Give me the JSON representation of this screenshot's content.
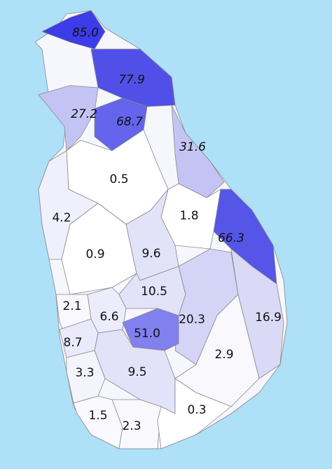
{
  "regions": [
    {
      "label": "85.0",
      "color": "#3c3ce8",
      "italic": true
    },
    {
      "label": "77.9",
      "color": "#5050e8",
      "italic": true
    },
    {
      "label": "27.2",
      "color": "#c4c4f4",
      "italic": true
    },
    {
      "label": "68.7",
      "color": "#6464ec",
      "italic": true
    },
    {
      "label": "31.6",
      "color": "#c4c4f4",
      "italic": true
    },
    {
      "label": "0.5",
      "color": "#ffffff",
      "italic": false
    },
    {
      "label": "4.2",
      "color": "#f0f0fc",
      "italic": false
    },
    {
      "label": "1.8",
      "color": "#ffffff",
      "italic": false
    },
    {
      "label": "66.3",
      "color": "#5555e8",
      "italic": true
    },
    {
      "label": "0.9",
      "color": "#ffffff",
      "italic": false
    },
    {
      "label": "9.6",
      "color": "#e2e2f8",
      "italic": false
    },
    {
      "label": "10.5",
      "color": "#e2e2f8",
      "italic": false
    },
    {
      "label": "2.1",
      "color": "#f8f8fd",
      "italic": false
    },
    {
      "label": "6.6",
      "color": "#ececfb",
      "italic": false
    },
    {
      "label": "20.3",
      "color": "#d4d4f6",
      "italic": false
    },
    {
      "label": "16.9",
      "color": "#dadaf7",
      "italic": false
    },
    {
      "label": "51.0",
      "color": "#8080ee",
      "italic": false
    },
    {
      "label": "8.7",
      "color": "#eaeafb",
      "italic": false
    },
    {
      "label": "2.9",
      "color": "#f8f8fd",
      "italic": false
    },
    {
      "label": "3.3",
      "color": "#f4f4fc",
      "italic": false
    },
    {
      "label": "9.5",
      "color": "#e2e2f8",
      "italic": false
    },
    {
      "label": "1.5",
      "color": "#fafafe",
      "italic": false
    },
    {
      "label": "2.3",
      "color": "#f8f8fd",
      "italic": false
    },
    {
      "label": "0.3",
      "color": "#ffffff",
      "italic": false
    }
  ]
}
